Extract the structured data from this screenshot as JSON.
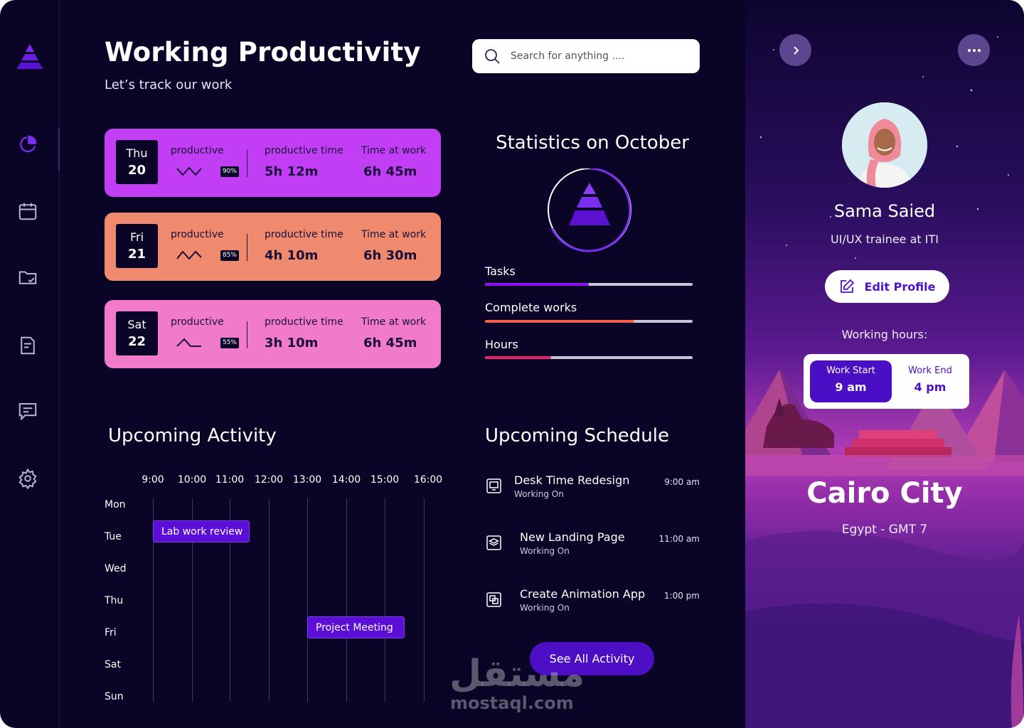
{
  "header": {
    "title": "Working Productivity",
    "subtitle": "Let’s track our work",
    "search_placeholder": "Search for anything ...."
  },
  "sidebar": {
    "items": [
      {
        "name": "dashboard",
        "icon": "pie-chart-icon",
        "active": true
      },
      {
        "name": "calendar",
        "icon": "calendar-icon"
      },
      {
        "name": "folder",
        "icon": "folder-check-icon"
      },
      {
        "name": "reports",
        "icon": "document-icon"
      },
      {
        "name": "messages",
        "icon": "message-icon"
      },
      {
        "name": "settings",
        "icon": "gear-icon"
      }
    ]
  },
  "days": [
    {
      "day": "Thu",
      "date": "20",
      "productive_label": "productive",
      "percent": "90%",
      "productive_time_label": "productive time",
      "productive_time": "5h 12m",
      "time_at_work_label": "Time at work",
      "time_at_work": "6h 45m",
      "color": "#c23ef5"
    },
    {
      "day": "Fri",
      "date": "21",
      "productive_label": "productive",
      "percent": "85%",
      "productive_time_label": "productive time",
      "productive_time": "4h 10m",
      "time_at_work_label": "Time at work",
      "time_at_work": "6h 30m",
      "color": "#f08a6e"
    },
    {
      "day": "Sat",
      "date": "22",
      "productive_label": "productive",
      "percent": "55%",
      "productive_time_label": "productive time",
      "productive_time": "3h 10m",
      "time_at_work_label": "Time at work",
      "time_at_work": "6h 45m",
      "color": "#f27acb"
    }
  ],
  "statistics": {
    "title": "Statistics on October",
    "bars": [
      {
        "label": "Tasks",
        "value": 0.5,
        "color": "#8a10f0"
      },
      {
        "label": "Complete works",
        "value": 0.72,
        "color": "#f0604a"
      },
      {
        "label": "Hours",
        "value": 0.32,
        "color": "#e8206e"
      }
    ]
  },
  "activity": {
    "title": "Upcoming Activity",
    "times": [
      "9:00",
      "10:00",
      "11:00",
      "12:00",
      "13:00",
      "14:00",
      "15:00",
      "16:00"
    ],
    "days": [
      "Mon",
      "Tue",
      "Wed",
      "Thu",
      "Fri",
      "Sat",
      "Sun"
    ],
    "events": [
      {
        "label": "Lab work review",
        "day": "Tue",
        "start": "9:00",
        "end": "11:30"
      },
      {
        "label": "Project Meeting",
        "day": "Fri",
        "start": "13:00",
        "end": "15:30"
      }
    ]
  },
  "schedule": {
    "title": "Upcoming Schedule",
    "items": [
      {
        "title": "Desk Time Redesign",
        "status": "Working On",
        "time": "9:00 am",
        "icon": "monitor-icon"
      },
      {
        "title": "New Landing Page",
        "status": "Working On",
        "time": "11:00 am",
        "icon": "layers-icon"
      },
      {
        "title": "Create Animation App",
        "status": "Working On",
        "time": "1:00 pm",
        "icon": "copy-icon"
      }
    ],
    "see_all_label": "See All Activity"
  },
  "profile": {
    "name": "Sama Saied",
    "role": "UI/UX trainee at  ITI",
    "edit_label": "Edit Profile",
    "working_hours_label": "Working hours:",
    "work_start_label": "Work Start",
    "work_start": "9 am",
    "work_end_label": "Work End",
    "work_end": "4 pm",
    "city": "Cairo City",
    "country": "Egypt - GMT 7"
  },
  "watermark": {
    "arabic": "مستقل",
    "latin": "mostaql.com"
  }
}
